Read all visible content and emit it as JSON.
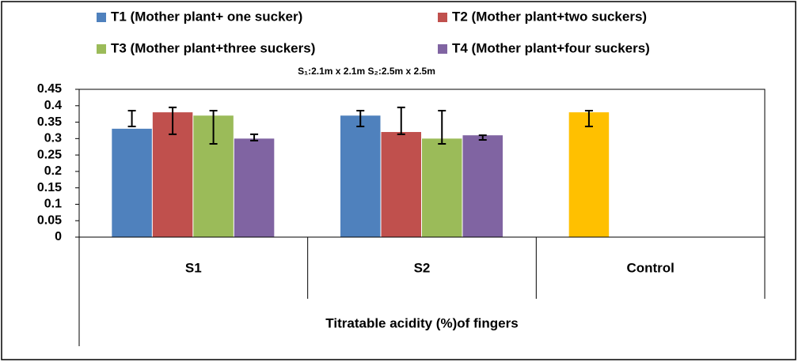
{
  "chart_data": {
    "type": "bar",
    "subtitle": "S₁:2.1m x 2.1m S₂:2.5m x 2.5m",
    "x_label": "Titratable acidity (%)of fingers",
    "categories": [
      "S1",
      "S2",
      "Control"
    ],
    "series": [
      {
        "name": "T1 (Mother plant+ one sucker)",
        "color": "#4F81BD",
        "point_colors": [
          "#4F81BD",
          "#4F81BD",
          "#FFC000"
        ],
        "values": [
          0.33,
          0.37,
          0.38
        ],
        "error_low": [
          0.337,
          0.337,
          0.337
        ],
        "error_high": [
          0.385,
          0.385,
          0.385
        ]
      },
      {
        "name": "T2 (Mother plant+two suckers)",
        "color": "#C0504D",
        "values": [
          0.38,
          0.32,
          null
        ],
        "error_low": [
          0.313,
          0.313,
          null
        ],
        "error_high": [
          0.395,
          0.395,
          null
        ]
      },
      {
        "name": "T3 (Mother plant+three suckers)",
        "color": "#9BBB59",
        "values": [
          0.37,
          0.3,
          null
        ],
        "error_low": [
          0.284,
          0.284,
          null
        ],
        "error_high": [
          0.385,
          0.385,
          null
        ]
      },
      {
        "name": "T4 (Mother plant+four suckers)",
        "color": "#8064A2",
        "values": [
          0.3,
          0.31,
          null
        ],
        "error_low": [
          0.294,
          0.296,
          null
        ],
        "error_high": [
          0.313,
          0.31,
          null
        ]
      }
    ],
    "ylim": [
      0,
      0.45
    ],
    "yticks": [
      0,
      0.05,
      0.1,
      0.15,
      0.2,
      0.25,
      0.3,
      0.35,
      0.4,
      0.45
    ],
    "grid": false,
    "legend": "top"
  }
}
